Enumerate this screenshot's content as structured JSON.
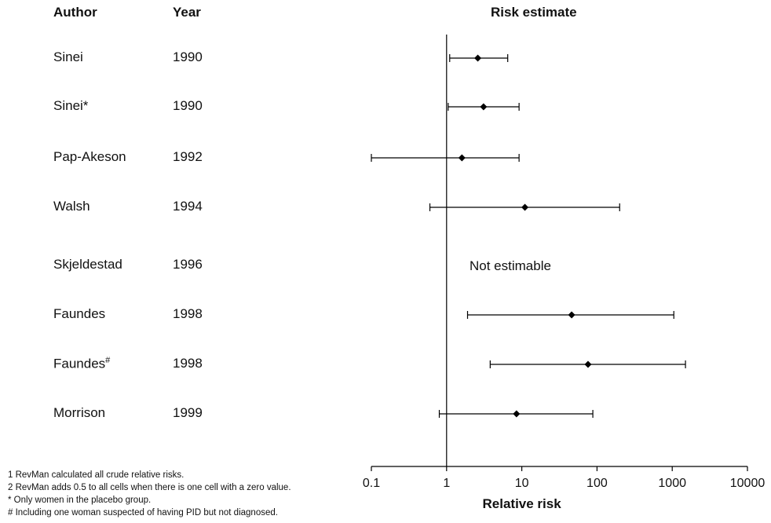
{
  "headers": {
    "author": "Author",
    "year": "Year",
    "estimate": "Risk estimate"
  },
  "rows": [
    {
      "author": "Sinei",
      "sup": "",
      "year": "1990"
    },
    {
      "author": "Sinei*",
      "sup": "",
      "year": "1990"
    },
    {
      "author": "Pap-Akeson",
      "sup": "",
      "year": "1992"
    },
    {
      "author": "Walsh",
      "sup": "",
      "year": "1994"
    },
    {
      "author": "Skjeldestad",
      "sup": "",
      "year": "1996"
    },
    {
      "author": "Faundes",
      "sup": "",
      "year": "1998"
    },
    {
      "author": "Faundes",
      "sup": "#",
      "year": "1998"
    },
    {
      "author": "Morrison",
      "sup": "",
      "year": "1999"
    }
  ],
  "chart_data": {
    "type": "forest",
    "xlabel": "Relative risk",
    "xscale": "log",
    "xlim": [
      0.1,
      10000
    ],
    "xticks": [
      0.1,
      1,
      10,
      100,
      1000,
      10000
    ],
    "xtick_labels": [
      "0.1",
      "1",
      "10",
      "100",
      "1000",
      "10000"
    ],
    "reference_line": 1,
    "points": [
      {
        "study": "Sinei 1990",
        "estimate": 2.6,
        "lower": 1.1,
        "upper": 6.5
      },
      {
        "study": "Sinei* 1990",
        "estimate": 3.1,
        "lower": 1.05,
        "upper": 9.2
      },
      {
        "study": "Pap-Akeson 1992",
        "estimate": 1.6,
        "lower": 0.1,
        "upper": 9.2
      },
      {
        "study": "Walsh 1994",
        "estimate": 11,
        "lower": 0.6,
        "upper": 200
      },
      {
        "study": "Skjeldestad 1996",
        "estimate": null,
        "lower": null,
        "upper": null,
        "note": "Not estimable"
      },
      {
        "study": "Faundes 1998",
        "estimate": 46,
        "lower": 1.9,
        "upper": 1050
      },
      {
        "study": "Faundes# 1998",
        "estimate": 76,
        "lower": 3.8,
        "upper": 1500
      },
      {
        "study": "Morrison 1999",
        "estimate": 8.5,
        "lower": 0.8,
        "upper": 88
      }
    ]
  },
  "footnotes": [
    "1 RevMan calculated all crude relative risks.",
    "2 RevMan adds 0.5 to all cells when there is one cell with a zero value.",
    "* Only women in the placebo group.",
    "# Including one woman suspected of having PID but not diagnosed."
  ]
}
